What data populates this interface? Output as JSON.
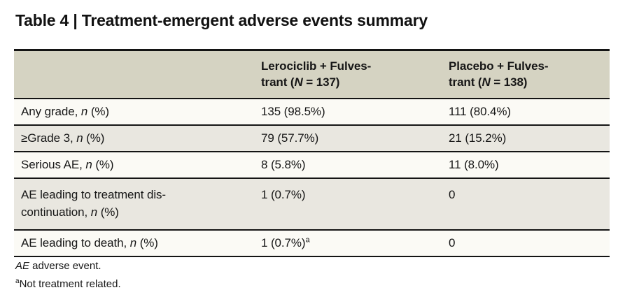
{
  "page": {
    "title": "Table 4 | Treatment-emergent adverse events summary"
  },
  "table": {
    "header": {
      "row_label_column": "",
      "lerociclib": {
        "line1": "Lerociclib + Fulves-",
        "line2_pre": "trant (",
        "n_var": "N",
        "line2_post": " = 137)"
      },
      "placebo": {
        "line1": "Placebo + Fulves-",
        "line2_pre": "trant (",
        "n_var": "N",
        "line2_post": " = 138)"
      }
    },
    "rows": [
      {
        "label_pre": "Any grade, ",
        "label_var": "n",
        "label_post": " (%)",
        "lerociclib": "135 (98.5%)",
        "placebo": "111 (80.4%)"
      },
      {
        "label_pre": "≥Grade 3, ",
        "label_var": "n",
        "label_post": " (%)",
        "lerociclib": "79 (57.7%)",
        "placebo": "21 (15.2%)"
      },
      {
        "label_pre": "Serious AE, ",
        "label_var": "n",
        "label_post": " (%)",
        "lerociclib": "8 (5.8%)",
        "placebo": "11 (8.0%)"
      },
      {
        "label_line1": "AE leading to treatment dis-",
        "label_pre": "continuation, ",
        "label_var": "n",
        "label_post": " (%)",
        "lerociclib": "1 (0.7%)",
        "placebo": "0"
      },
      {
        "label_pre": "AE leading to death, ",
        "label_var": "n",
        "label_post": " (%)",
        "lerociclib": "1 (0.7%)",
        "lerociclib_sup": "a",
        "placebo": "0"
      }
    ],
    "colors": {
      "header_bg": "#d5d3c2",
      "row_light": "#fbfaf5",
      "row_shaded": "#e9e7e0",
      "border": "#141414"
    }
  },
  "footnotes": {
    "abbrev_italic": "AE",
    "abbrev_rest": " adverse event.",
    "note_sup": "a",
    "note_text": "Not treatment related."
  }
}
